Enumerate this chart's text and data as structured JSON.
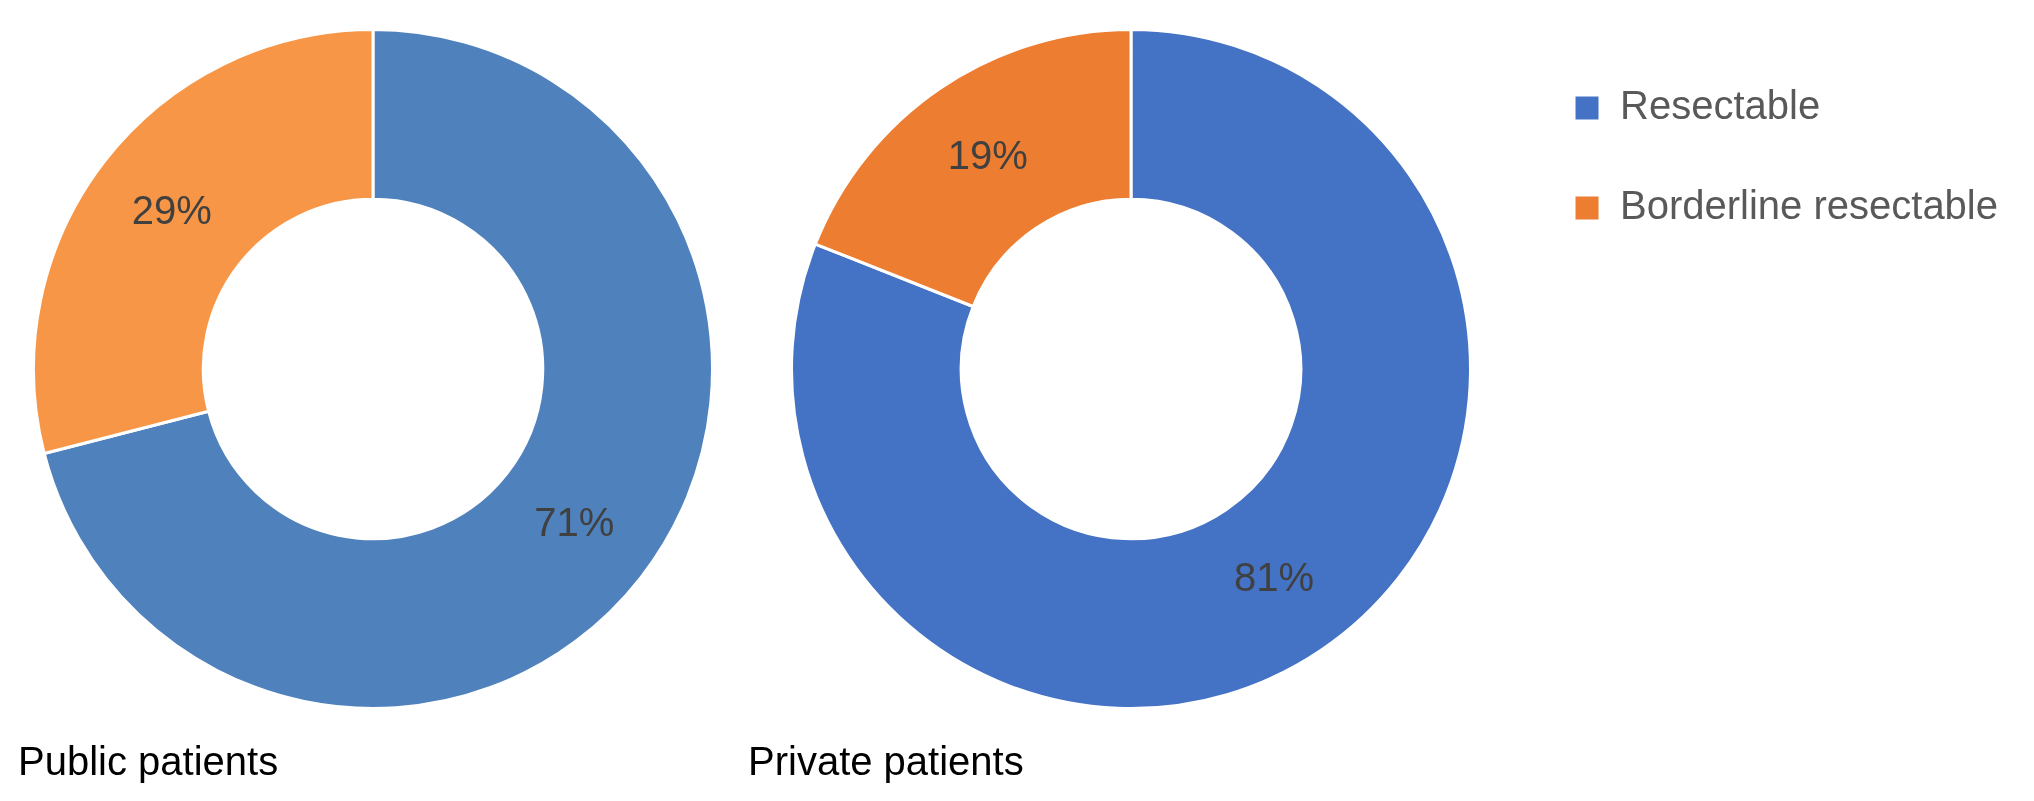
{
  "chart_data": [
    {
      "type": "donut",
      "title": "Public patients",
      "categories": [
        null,
        null
      ],
      "values": [
        71,
        29
      ],
      "value_labels": [
        "71%",
        "29%"
      ],
      "colors": [
        "#4f81bd",
        "#f79646"
      ],
      "legend": false
    },
    {
      "type": "donut",
      "title": "Private patients",
      "categories": [
        "Resectable",
        "Borderline resectable"
      ],
      "values": [
        81,
        19
      ],
      "value_labels": [
        "81%",
        "19%"
      ],
      "colors": [
        "#4472c4",
        "#ed7d31"
      ],
      "legend": "right"
    }
  ]
}
